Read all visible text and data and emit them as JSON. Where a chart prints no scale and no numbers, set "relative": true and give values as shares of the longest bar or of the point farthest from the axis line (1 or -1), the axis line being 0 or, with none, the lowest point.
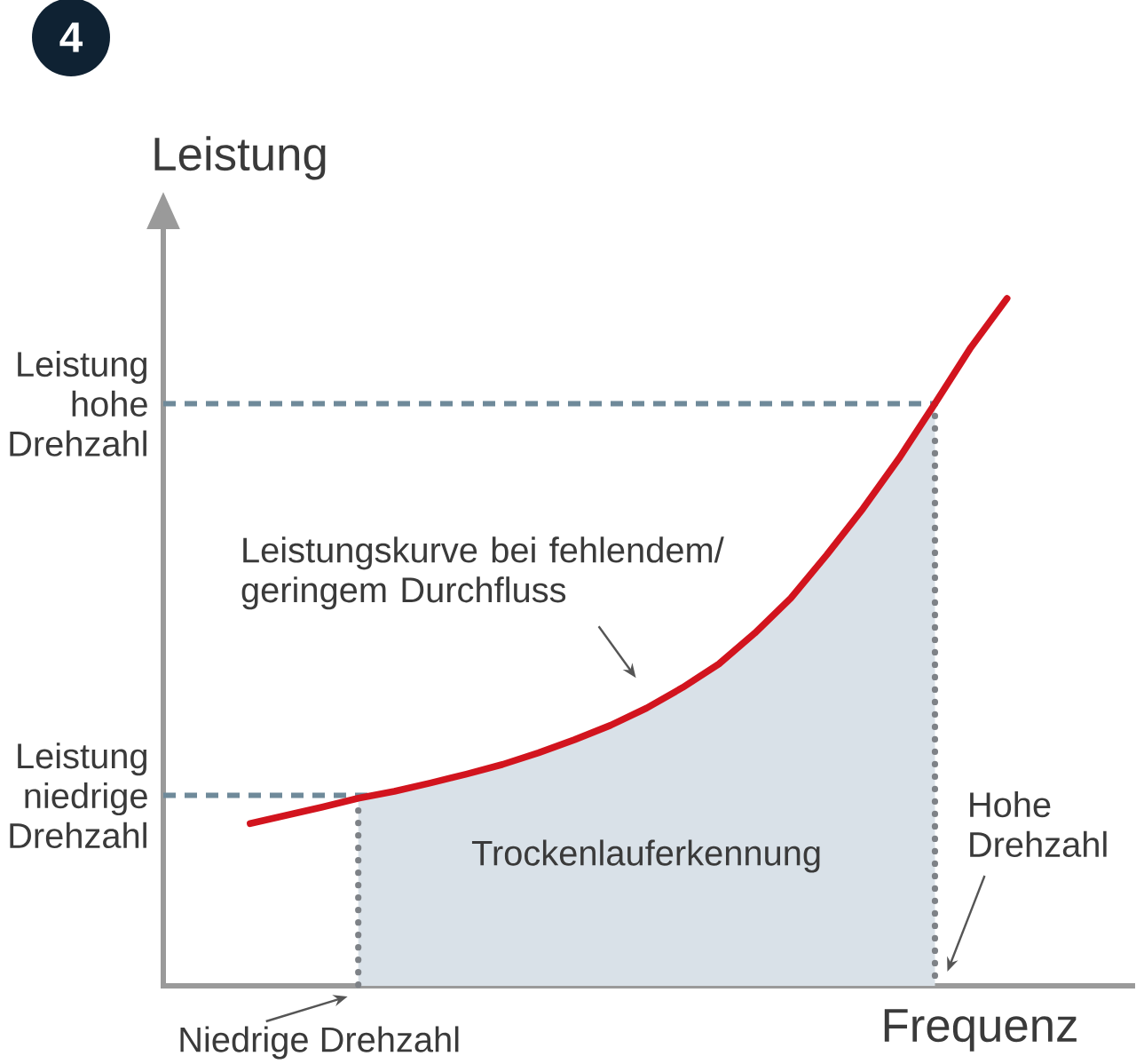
{
  "chart_data": {
    "type": "line",
    "title": "4",
    "xlabel": "Frequenz",
    "ylabel": "Leistung",
    "relative": true,
    "categories": [
      null,
      null,
      null,
      null,
      null,
      null,
      null,
      null,
      null,
      null,
      null,
      null,
      null,
      null,
      null,
      null,
      null,
      null,
      null,
      null,
      null,
      null
    ],
    "series": [
      {
        "type": "area",
        "name": "Trockenlauferkennung",
        "color": "#d9e1e8",
        "line_style": "dotted",
        "values": [
          null,
          null,
          null,
          0.273,
          0.283,
          0.295,
          0.308,
          0.322,
          0.339,
          0.358,
          0.379,
          0.404,
          0.434,
          0.468,
          0.513,
          0.564,
          0.627,
          0.694,
          0.767,
          0.847,
          null,
          null
        ]
      },
      {
        "name": "Leistungskurve bei fehlendem/ geringem Durchfluss",
        "color": "#d2141e",
        "values": [
          0.236,
          0.248,
          0.26,
          0.273,
          0.283,
          0.295,
          0.308,
          0.322,
          0.339,
          0.358,
          0.379,
          0.404,
          0.434,
          0.468,
          0.513,
          0.564,
          0.627,
          0.694,
          0.767,
          0.847,
          0.929,
          1.0
        ]
      }
    ],
    "ref_lines": [
      {
        "axis": "y",
        "value": 0.277,
        "label": "Leistung niedrige Drehzahl",
        "color": "#6f8a9a",
        "line_style": "dashed"
      },
      {
        "axis": "y",
        "value": 0.847,
        "label": "Leistung hohe Drehzahl",
        "color": "#6f8a9a",
        "line_style": "dashed"
      }
    ],
    "annotations": [
      "Niedrige Drehzahl",
      "Hohe Drehzahl"
    ]
  }
}
